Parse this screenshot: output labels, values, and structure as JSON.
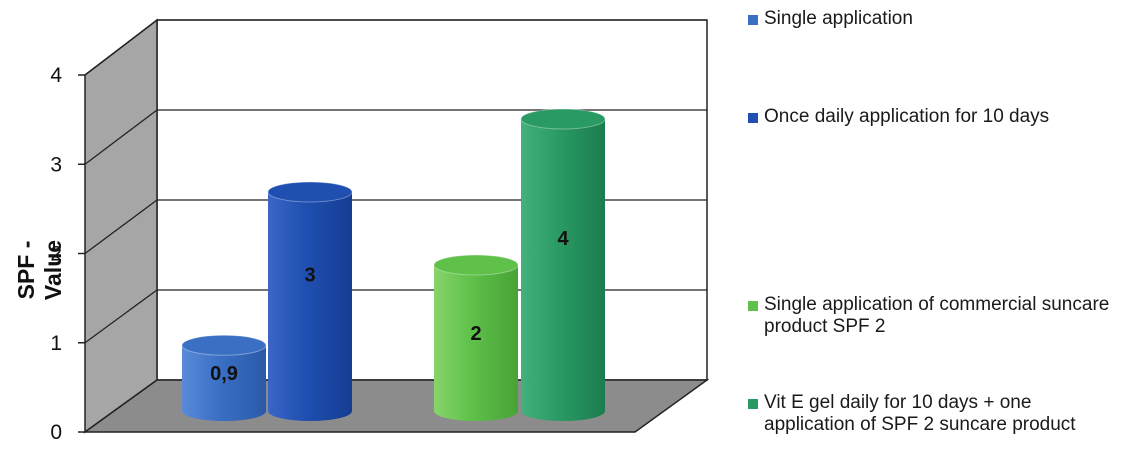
{
  "chart_data": {
    "type": "bar",
    "ylabel": "SPF - Value",
    "xlabel": "",
    "title": "",
    "ylim": [
      0,
      4
    ],
    "yticks": [
      "0",
      "1",
      "2",
      "3",
      "4"
    ],
    "grid": true,
    "legend_position": "right",
    "series": [
      {
        "name": "Single application",
        "value": 0.9,
        "label": "0,9",
        "color": "#3a6fc4"
      },
      {
        "name": "Once daily application for 10 days",
        "value": 3,
        "label": "3",
        "color": "#1f4fb0"
      },
      {
        "name": "Single application of commercial suncare product SPF 2",
        "value": 2,
        "label": "2",
        "color": "#5fc04a"
      },
      {
        "name": "Vit E gel daily for 10 days + one application of SPF 2 suncare product",
        "value": 4,
        "label": "4",
        "color": "#2a9a64"
      }
    ]
  }
}
